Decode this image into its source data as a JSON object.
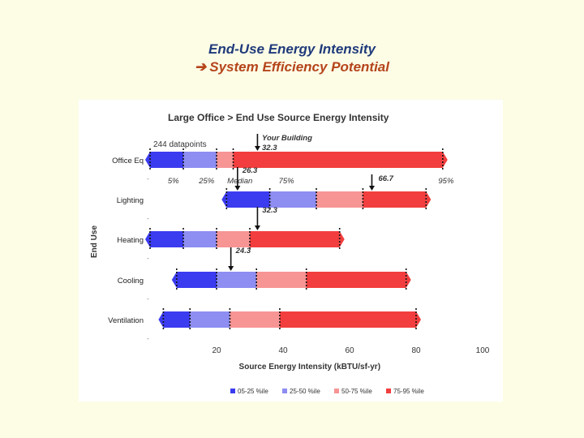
{
  "slide": {
    "title_line1": "End-Use Energy Intensity",
    "title_line2": "System Efficiency Potential",
    "arrow_icon": "right-arrow-icon"
  },
  "chart_data": {
    "type": "bar",
    "title": "Large Office > End Use Source Energy Intensity",
    "xlabel": "Source Energy Intensity (kBTU/sf-yr)",
    "ylabel": "End Use",
    "xlim": [
      0,
      100
    ],
    "xticks": [
      20,
      40,
      60,
      80,
      100
    ],
    "datapoints_label": "244 datapoints",
    "your_building_label": "Your Building",
    "percentile_labels": [
      {
        "label": "5%",
        "value": 7
      },
      {
        "label": "25%",
        "value": 17
      },
      {
        "label": "Median",
        "value": 27
      },
      {
        "label": "75%",
        "value": 41
      },
      {
        "label": "95%",
        "value": 89
      }
    ],
    "categories": [
      "Office Eq",
      "Lighting",
      "Heating",
      "Cooling",
      "Ventilation"
    ],
    "rows": [
      {
        "name": "Office Eq",
        "p5": 0,
        "p25": 10,
        "p50": 20,
        "p75": 25,
        "p95": 88,
        "your_building": "32.3",
        "your_value": 32.3,
        "marker_value": 66.7,
        "marker_label": "66.7"
      },
      {
        "name": "Lighting",
        "p5": 23,
        "p25": 36,
        "p50": 50,
        "p75": 64,
        "p95": 83,
        "your_building": "26.3",
        "your_value": 26.3
      },
      {
        "name": "Heating",
        "p5": 0,
        "p25": 10,
        "p50": 20,
        "p75": 30,
        "p95": 57,
        "your_building": "32.3",
        "your_value": 32.3
      },
      {
        "name": "Cooling",
        "p5": 8,
        "p25": 20,
        "p50": 32,
        "p75": 47,
        "p95": 77,
        "your_building": "24.3",
        "your_value": 24.3
      },
      {
        "name": "Ventilation",
        "p5": 4,
        "p25": 12,
        "p50": 24,
        "p75": 39,
        "p95": 80
      }
    ],
    "series": [
      {
        "name": "05-25 %ile",
        "color": "#3b3bf0"
      },
      {
        "name": "25-50 %ile",
        "color": "#8d8df2"
      },
      {
        "name": "50-75 %ile",
        "color": "#f79494"
      },
      {
        "name": "75-95 %ile",
        "color": "#f23e3e"
      }
    ],
    "legend_position": "bottom"
  }
}
